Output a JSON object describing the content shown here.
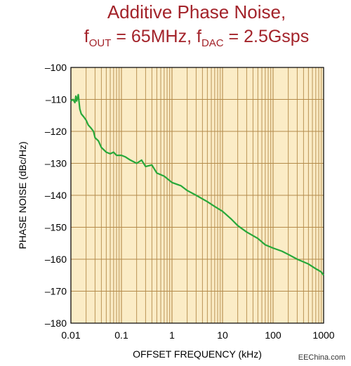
{
  "title": {
    "line1": "Additive Phase Noise,",
    "f1": "f",
    "out_sub": "OUT",
    "out_val": " = 65MHz, ",
    "f2": "f",
    "dac_sub": "DAC",
    "dac_val": " = 2.5Gsps"
  },
  "watermark": "EEChina.com",
  "colors": {
    "plot_bg": "#fbecc6",
    "grid": "#b38a4a",
    "line": "#27a83a",
    "title": "#a3232a"
  },
  "chart_data": {
    "type": "line",
    "title": "Additive Phase Noise, fOUT = 65MHz, fDAC = 2.5Gsps",
    "xlabel": "OFFSET FREQUENCY (kHz)",
    "ylabel": "PHASE NOISE (dBc/Hz)",
    "xscale": "log",
    "xlim": [
      0.01,
      1000
    ],
    "ylim": [
      -180,
      -100
    ],
    "xticks": [
      "0.01",
      "0.1",
      "1",
      "10",
      "100",
      "1000"
    ],
    "yticks": [
      "–100",
      "–110",
      "–120",
      "–130",
      "–140",
      "–150",
      "–160",
      "–170",
      "–180"
    ],
    "grid": true,
    "series": [
      {
        "x": [
          0.01,
          0.011,
          0.012,
          0.0125,
          0.013,
          0.014,
          0.015,
          0.016,
          0.018,
          0.02,
          0.022,
          0.025,
          0.028,
          0.03,
          0.035,
          0.04,
          0.05,
          0.06,
          0.07,
          0.08,
          0.1,
          0.12,
          0.15,
          0.2,
          0.25,
          0.3,
          0.4,
          0.5,
          0.7,
          1,
          1.5,
          2,
          3,
          5,
          7,
          10,
          15,
          20,
          30,
          50,
          70,
          100,
          150,
          200,
          300,
          500,
          700,
          800,
          900,
          1000
        ],
        "y": [
          -110.5,
          -110,
          -111,
          -109,
          -110.5,
          -108.5,
          -113,
          -114.5,
          -115.5,
          -116.5,
          -118,
          -119,
          -120,
          -122,
          -123,
          -125,
          -126.5,
          -127,
          -126.5,
          -127.5,
          -127.5,
          -128,
          -129,
          -130,
          -129,
          -131,
          -130.5,
          -133,
          -134,
          -136,
          -137,
          -138.5,
          -140,
          -142,
          -143.5,
          -145,
          -147.5,
          -149.5,
          -151.5,
          -153.5,
          -155.5,
          -156.5,
          -157.5,
          -158.5,
          -160,
          -161.5,
          -163,
          -163.5,
          -164,
          -165
        ]
      }
    ]
  }
}
